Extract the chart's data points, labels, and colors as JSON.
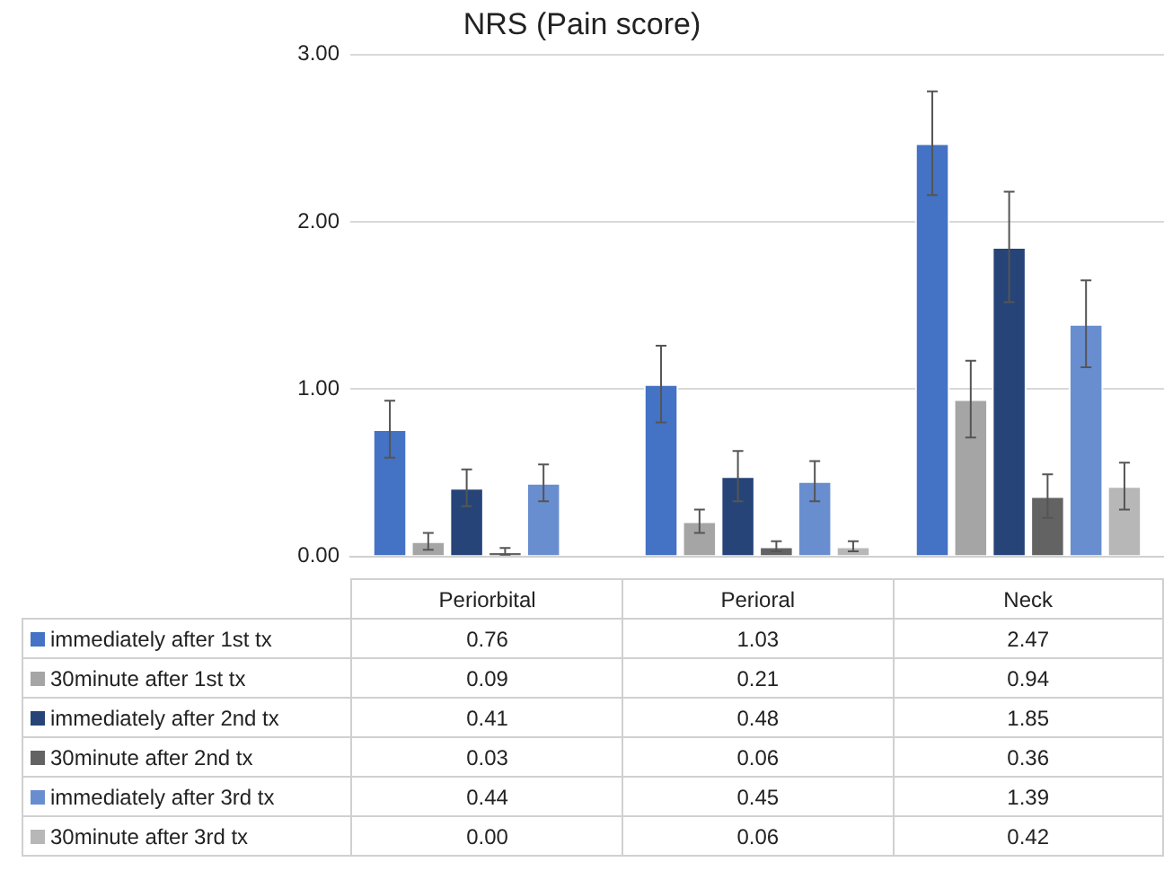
{
  "chart_data": {
    "type": "bar",
    "title": "NRS (Pain score)",
    "categories": [
      "Periorbital",
      "Perioral",
      "Neck"
    ],
    "series": [
      {
        "name": "immediately after 1st tx",
        "color": "#4472c4",
        "values": [
          0.76,
          1.03,
          2.47
        ],
        "errors": [
          0.17,
          0.23,
          0.31
        ],
        "value_labels": [
          "0.76",
          "1.03",
          "2.47"
        ]
      },
      {
        "name": "30minute after 1st tx",
        "color": "#a5a5a5",
        "values": [
          0.09,
          0.21,
          0.94
        ],
        "errors": [
          0.05,
          0.07,
          0.23
        ],
        "value_labels": [
          "0.09",
          "0.21",
          "0.94"
        ]
      },
      {
        "name": "immediately after 2nd tx",
        "color": "#264478",
        "values": [
          0.41,
          0.48,
          1.85
        ],
        "errors": [
          0.11,
          0.15,
          0.33
        ],
        "value_labels": [
          "0.41",
          "0.48",
          "1.85"
        ]
      },
      {
        "name": "30minute after 2nd tx",
        "color": "#636363",
        "values": [
          0.03,
          0.06,
          0.36
        ],
        "errors": [
          0.02,
          0.03,
          0.13
        ],
        "value_labels": [
          "0.03",
          "0.06",
          "0.36"
        ]
      },
      {
        "name": "immediately after 3rd tx",
        "color": "#698ed0",
        "values": [
          0.44,
          0.45,
          1.39
        ],
        "errors": [
          0.11,
          0.12,
          0.26
        ],
        "value_labels": [
          "0.44",
          "0.45",
          "1.39"
        ]
      },
      {
        "name": "30minute after 3rd tx",
        "color": "#b7b7b7",
        "values": [
          0,
          0.06,
          0.42
        ],
        "errors": [
          null,
          0.03,
          0.14
        ],
        "value_labels": [
          "0.00",
          "0.06",
          "0.42"
        ]
      }
    ],
    "ylim": [
      0,
      3
    ],
    "yticks": [
      {
        "value": 0,
        "label": "0.00"
      },
      {
        "value": 1,
        "label": "1.00"
      },
      {
        "value": 2,
        "label": "2.00"
      },
      {
        "value": 3,
        "label": "3.00"
      }
    ],
    "grid": "y",
    "legend": "bottom"
  }
}
